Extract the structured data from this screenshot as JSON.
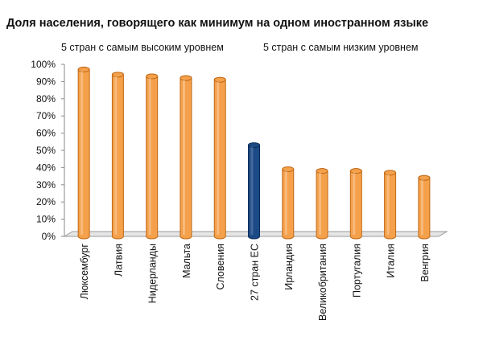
{
  "chart_data": {
    "type": "bar",
    "title": "Доля населения, говорящего как минимум на одном иностранном языке",
    "annotations": [
      "5 стран с самым высоким уровнем",
      "5 стран с самым низким уровнем"
    ],
    "categories": [
      "Люксембург",
      "Латвия",
      "Нидерланды",
      "Мальта",
      "Словения",
      "27 стран ЕС",
      "Ирландия",
      "Великобритания",
      "Португалия",
      "Италия",
      "Венгрия"
    ],
    "values": [
      97,
      94,
      93,
      92,
      91,
      53,
      39,
      38,
      38,
      37,
      34
    ],
    "highlight_category": "27 стран ЕС",
    "ylim": [
      0,
      100
    ],
    "yticks": [
      "0%",
      "10%",
      "20%",
      "30%",
      "40%",
      "50%",
      "60%",
      "70%",
      "80%",
      "90%",
      "100%"
    ],
    "xlabel": "",
    "ylabel": "",
    "grid": false,
    "legend": "none",
    "colors": {
      "bar": "#f5a04a",
      "bar_edge": "#c06a18",
      "highlight": "#1b4a86",
      "highlight_edge": "#0d2c56",
      "floor": "#e6e6e6"
    }
  }
}
